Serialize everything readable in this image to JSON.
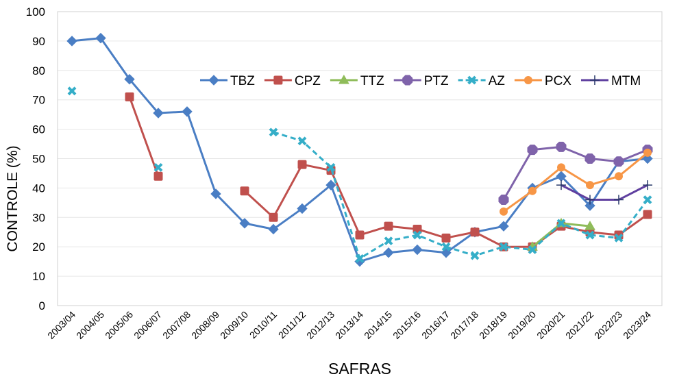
{
  "chart_data": {
    "type": "line",
    "title": "",
    "xlabel": "SAFRAS",
    "ylabel": "CONTROLE (%)",
    "ylim": [
      0,
      100
    ],
    "yticks": [
      "0",
      "10",
      "20",
      "30",
      "40",
      "50",
      "60",
      "70",
      "80",
      "90",
      "100"
    ],
    "grid": true,
    "legend_placement": "top-center inside",
    "categories": [
      "2003/04",
      "2004/05",
      "2005/06",
      "2006/07",
      "2007/08",
      "2008/09",
      "2009/10",
      "2010/11",
      "2011/12",
      "2012/13",
      "2013/14",
      "2014/15",
      "2015/16",
      "2016/17",
      "2017/18",
      "2018/19",
      "2019/20",
      "2020/21",
      "2021/22",
      "2022/23",
      "2023/24"
    ],
    "series": [
      {
        "name": "TBZ",
        "color": "#4a7ec4",
        "marker": "diamond",
        "dashed": false,
        "values": [
          90,
          91,
          77,
          65.5,
          66,
          38,
          28,
          26,
          33,
          41,
          15,
          18,
          19,
          18,
          25,
          27,
          40,
          44,
          34,
          49,
          50
        ]
      },
      {
        "name": "CPZ",
        "color": "#c0504d",
        "marker": "square",
        "dashed": false,
        "values": [
          null,
          null,
          71,
          44,
          null,
          null,
          39,
          30,
          48,
          46,
          24,
          27,
          26,
          23,
          25,
          20,
          20,
          27,
          25,
          24,
          31
        ]
      },
      {
        "name": "TTZ",
        "color": "#8fbc5a",
        "marker": "triangle",
        "dashed": false,
        "values": [
          null,
          null,
          null,
          null,
          null,
          null,
          null,
          null,
          null,
          null,
          null,
          null,
          null,
          null,
          null,
          null,
          20,
          28,
          27,
          null,
          null
        ]
      },
      {
        "name": "PTZ",
        "color": "#7f63aa",
        "marker": "star",
        "dashed": false,
        "values": [
          null,
          null,
          null,
          null,
          null,
          null,
          null,
          null,
          null,
          null,
          null,
          null,
          null,
          null,
          null,
          36,
          53,
          54,
          50,
          49,
          53
        ]
      },
      {
        "name": "AZ",
        "color": "#35aec8",
        "marker": "x",
        "dashed": true,
        "values": [
          73,
          null,
          null,
          47,
          null,
          null,
          null,
          59,
          56,
          47,
          16,
          22,
          24,
          20,
          17,
          20,
          19,
          28,
          24,
          23,
          36
        ]
      },
      {
        "name": "PCX",
        "color": "#f79646",
        "marker": "circle",
        "dashed": false,
        "values": [
          null,
          null,
          null,
          null,
          null,
          null,
          null,
          null,
          null,
          null,
          null,
          null,
          null,
          null,
          null,
          32,
          39,
          47,
          41,
          44,
          52
        ]
      },
      {
        "name": "MTM",
        "color": "#6040a0",
        "marker": "plus",
        "dashed": false,
        "values": [
          null,
          null,
          null,
          null,
          null,
          null,
          null,
          null,
          null,
          null,
          null,
          null,
          null,
          null,
          null,
          null,
          null,
          41,
          36,
          36,
          41
        ]
      }
    ]
  }
}
